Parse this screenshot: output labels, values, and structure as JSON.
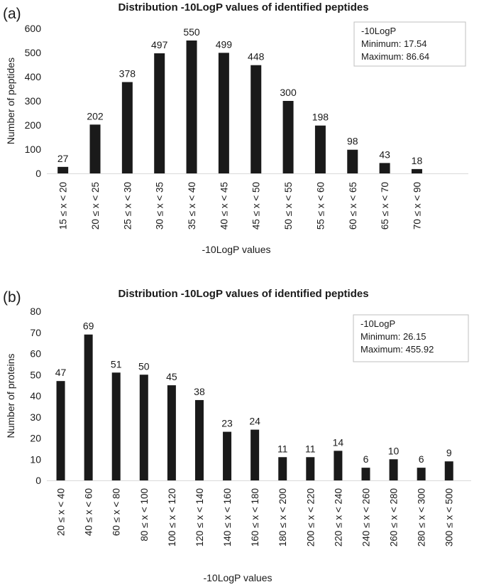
{
  "colors": {
    "bar": "#1a1a1a",
    "axis": "#d9d9d9",
    "text": "#1a1a1a",
    "legend_border": "#bfbfbf"
  },
  "chart_data": [
    {
      "type": "bar",
      "panel_label": "(a)",
      "title": "Distribution -10LogP values of identified peptides",
      "xlabel": "-10LogP values",
      "ylabel": "Number of peptides",
      "ylim": [
        0,
        600
      ],
      "yticks": [
        0,
        100,
        200,
        300,
        400,
        500,
        600
      ],
      "categories": [
        "15 ≤ x < 20",
        "20 ≤ x < 25",
        "25 ≤ x < 30",
        "30 ≤ x < 35",
        "35 ≤ x < 40",
        "40 ≤ x < 45",
        "45 ≤ x < 50",
        "50 ≤ x < 55",
        "55 ≤ x < 60",
        "60 ≤ x < 65",
        "65 ≤ x < 70",
        "70 ≤ x < 90"
      ],
      "values": [
        27,
        202,
        378,
        497,
        550,
        499,
        448,
        300,
        198,
        98,
        43,
        18
      ],
      "legend": {
        "title": "-10LogP",
        "lines": [
          "Minimum: 17.54",
          "Maximum: 86.64"
        ],
        "position": "top-right"
      }
    },
    {
      "type": "bar",
      "panel_label": "(b)",
      "title": "Distribution -10LogP values of identified peptides",
      "xlabel": "-10LogP values",
      "ylabel": "Number of proteins",
      "ylim": [
        0,
        80
      ],
      "yticks": [
        0,
        10,
        20,
        30,
        40,
        50,
        60,
        70,
        80
      ],
      "categories": [
        "20 ≤ x < 40",
        "40 ≤ x < 60",
        "60 ≤ x < 80",
        "80 ≤ x < 100",
        "100 ≤ x < 120",
        "120 ≤ x < 140",
        "140 ≤ x < 160",
        "160 ≤ x < 180",
        "180 ≤ x < 200",
        "200 ≤ x < 220",
        "220 ≤ x < 240",
        "240 ≤ x < 260",
        "260 ≤ x < 280",
        "280 ≤ x < 300",
        "300 ≤ x < 500"
      ],
      "values": [
        47,
        69,
        51,
        50,
        45,
        38,
        23,
        24,
        11,
        11,
        14,
        6,
        10,
        6,
        9
      ],
      "legend": {
        "title": "-10LogP",
        "lines": [
          "Minimum: 26.15",
          "Maximum: 455.92"
        ],
        "position": "top-right"
      }
    }
  ]
}
